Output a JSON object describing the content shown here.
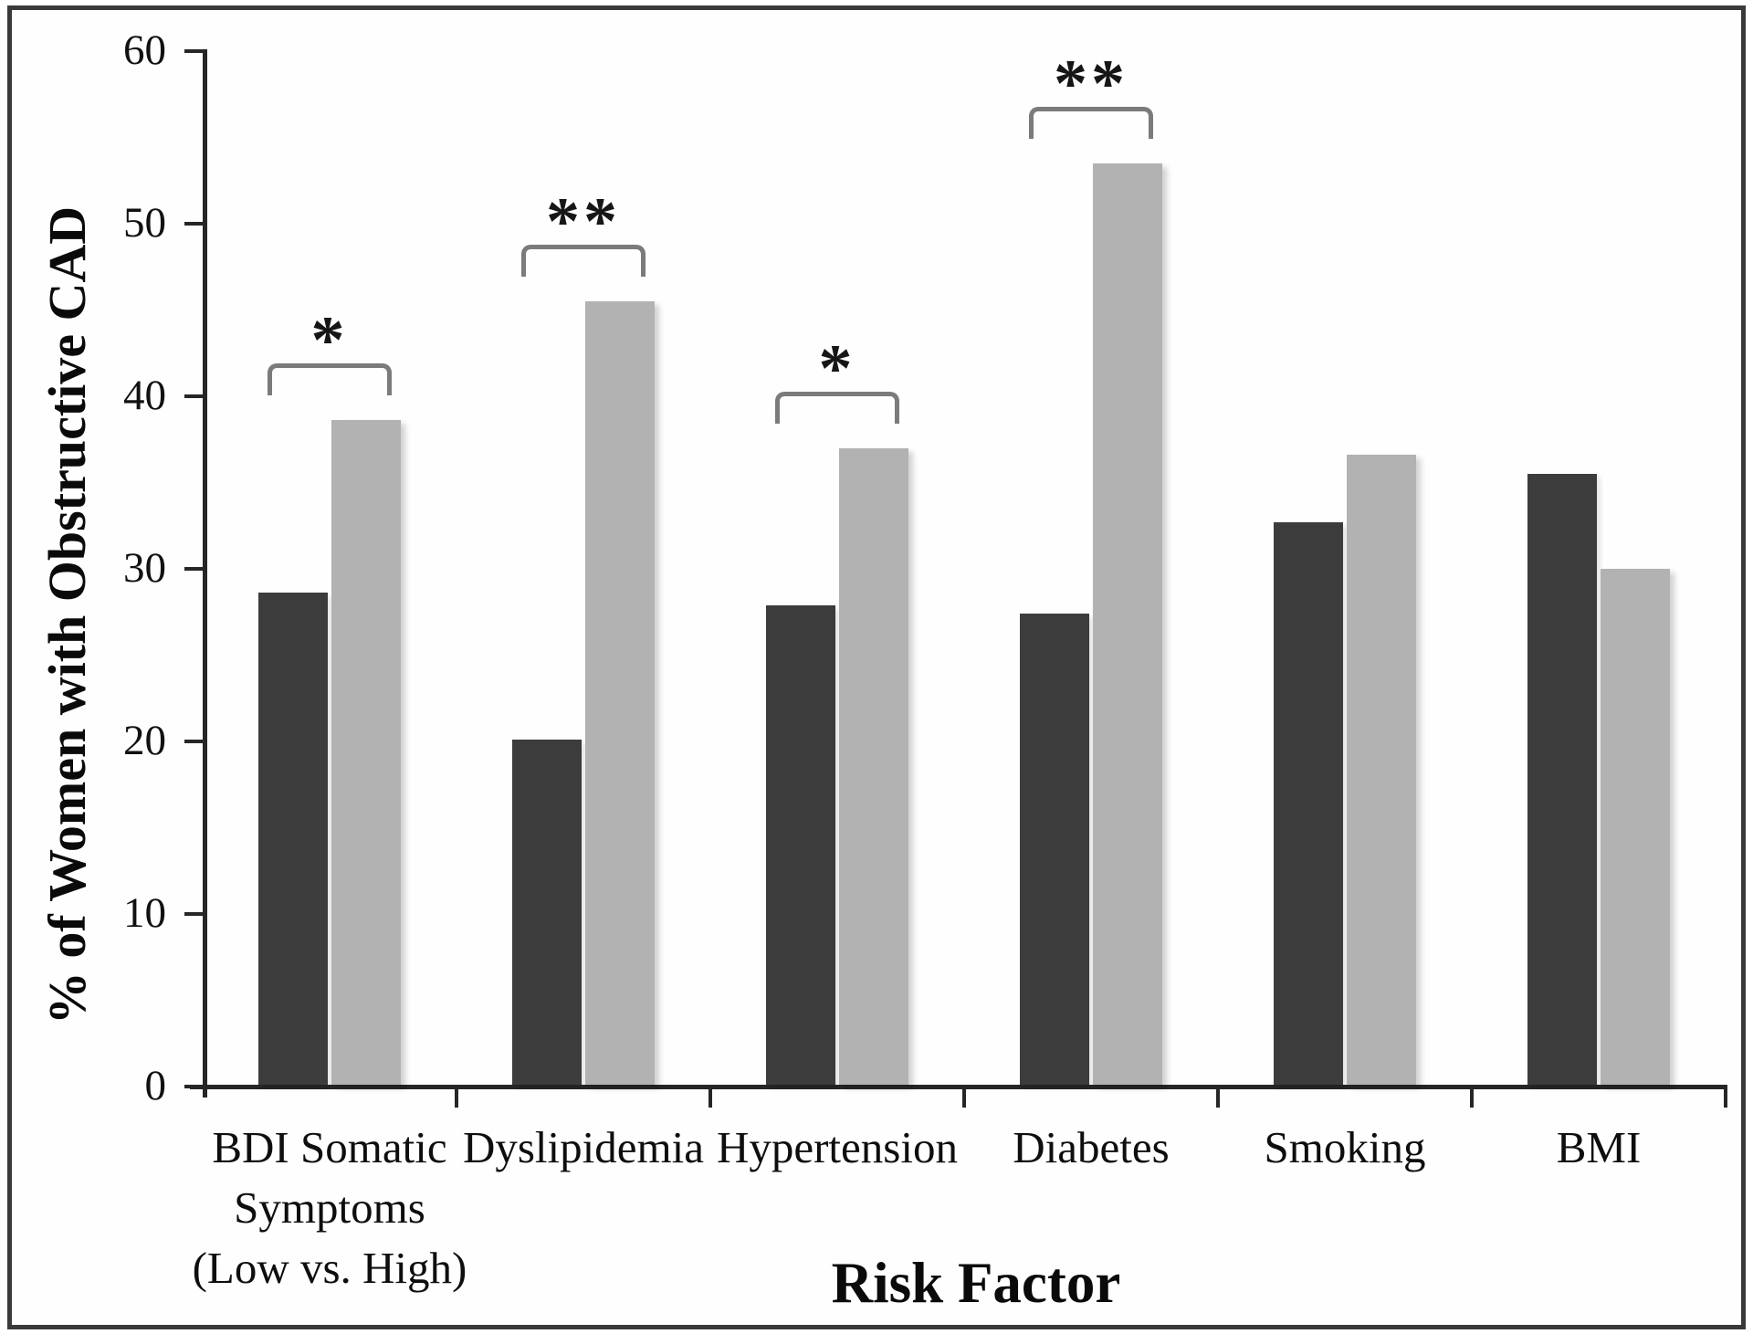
{
  "figure": {
    "background": "#fefefe",
    "border_color": "#3a3a3a"
  },
  "chart_data": {
    "type": "bar",
    "title": "",
    "xlabel": "Risk Factor",
    "ylabel": "% of Women with Obstructive CAD",
    "ylim": [
      0,
      60
    ],
    "yticks": [
      0,
      10,
      20,
      30,
      40,
      50,
      60
    ],
    "grid": false,
    "legend": "none",
    "categories": [
      [
        "BDI Somatic",
        "Symptoms",
        "(Low vs. High)"
      ],
      [
        "Dyslipidemia"
      ],
      [
        "Hypertension"
      ],
      [
        "Diabetes"
      ],
      [
        "Smoking"
      ],
      [
        "BMI"
      ]
    ],
    "series": [
      {
        "name": "dark-gray-bar",
        "color": "#3c3c3c",
        "values": [
          28.5,
          20.0,
          27.8,
          27.3,
          32.6,
          35.4
        ]
      },
      {
        "name": "light-gray-bar",
        "color": "#b2b2b2",
        "values": [
          38.5,
          45.4,
          36.9,
          53.4,
          36.5,
          29.9
        ]
      }
    ],
    "significance_markers": [
      "*",
      "**",
      "*",
      "**",
      "",
      ""
    ],
    "colors": {
      "axis": "#262626",
      "bracket": "#7b7b7b",
      "text": "#0e0e0e"
    }
  }
}
